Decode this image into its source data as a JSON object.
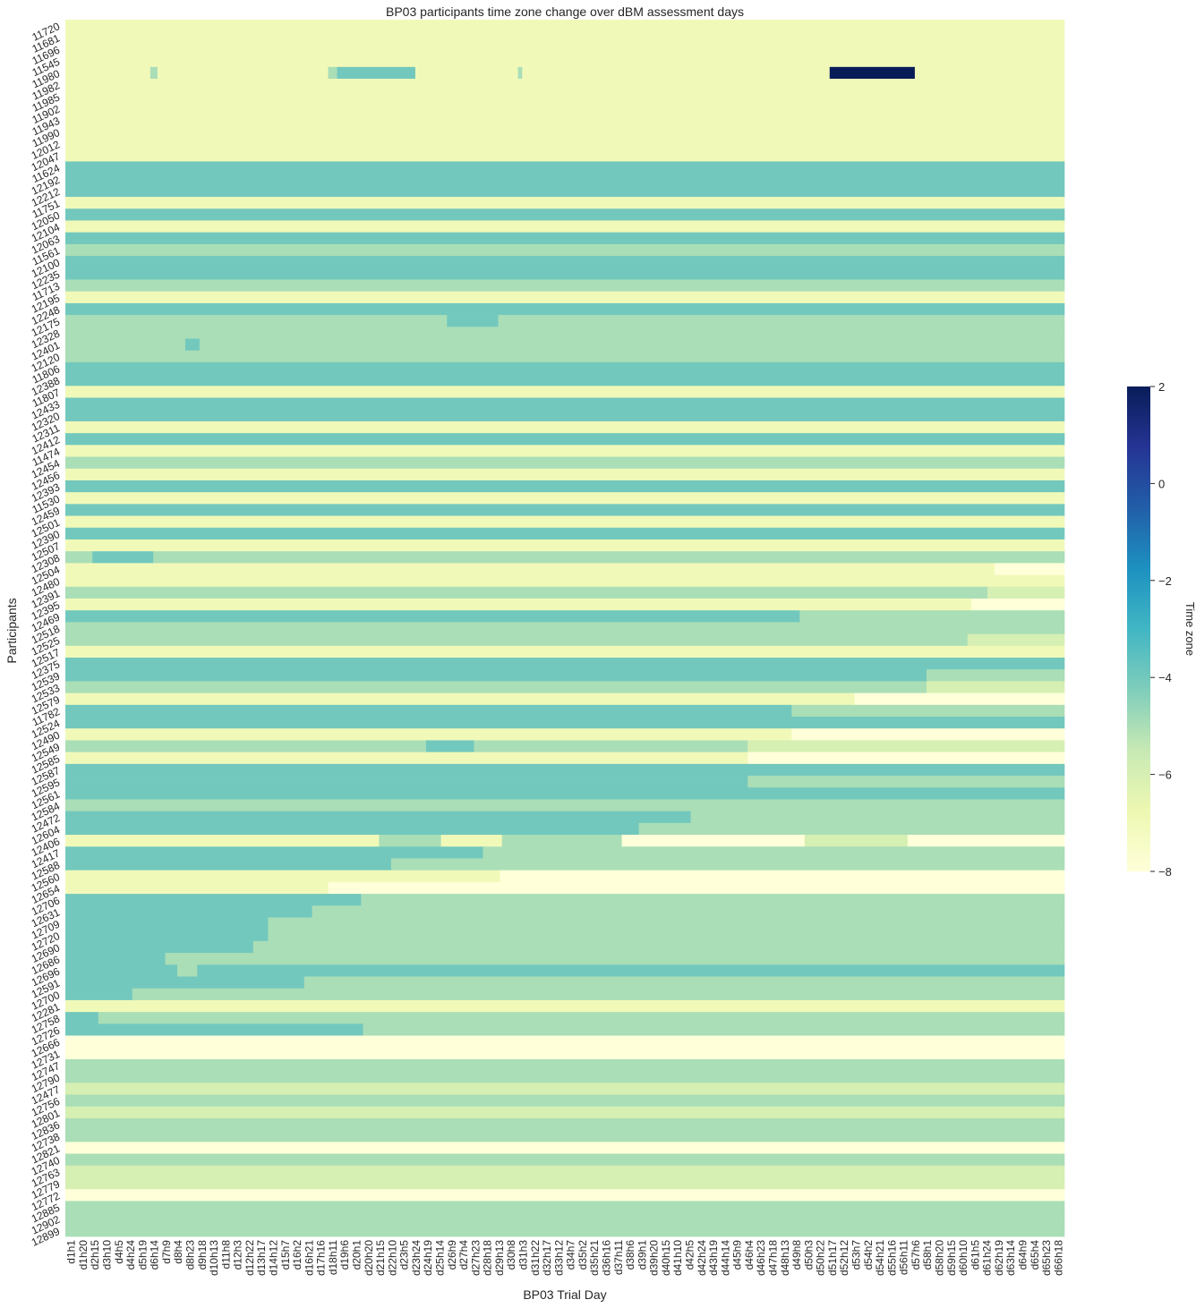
{
  "chart_data": {
    "type": "heatmap",
    "title": "BP03 participants time zone change over dBM assessment days",
    "xlabel": "BP03 Trial Day",
    "ylabel": "Participants",
    "colorbar": {
      "label": "Time zone",
      "ticks": [
        2,
        0,
        -2,
        -4,
        -6,
        -8
      ],
      "min": -8,
      "max": 2,
      "colors": [
        "#ffffd9",
        "#edf8b1",
        "#c7e9b4",
        "#7fcdbb",
        "#41b6c4",
        "#1d91c0",
        "#225ea8",
        "#253494",
        "#081d58"
      ]
    },
    "x_tick_labels": [
      "d1h1",
      "d1h20",
      "d2h15",
      "d3h10",
      "d4h5",
      "d4h24",
      "d5h19",
      "d6h14",
      "d7h9",
      "d8h4",
      "d8h23",
      "d9h18",
      "d10h13",
      "d11h8",
      "d12h3",
      "d12h22",
      "d13h17",
      "d14h12",
      "d15h7",
      "d16h2",
      "d16h21",
      "d17h16",
      "d18h11",
      "d19h6",
      "d20h1",
      "d20h20",
      "d21h15",
      "d22h10",
      "d23h5",
      "d23h24",
      "d24h19",
      "d25h14",
      "d26h9",
      "d27h4",
      "d27h23",
      "d28h18",
      "d29h13",
      "d30h8",
      "d31h3",
      "d31h22",
      "d32h17",
      "d33h12",
      "d34h7",
      "d35h2",
      "d35h21",
      "d36h16",
      "d37h11",
      "d38h6",
      "d39h1",
      "d39h20",
      "d40h15",
      "d41h10",
      "d42h5",
      "d42h24",
      "d43h19",
      "d44h14",
      "d45h9",
      "d46h4",
      "d46h23",
      "d47h18",
      "d48h13",
      "d49h8",
      "d50h3",
      "d50h22",
      "d51h17",
      "d52h12",
      "d53h7",
      "d54h2",
      "d54h21",
      "d55h16",
      "d56h11",
      "d57h6",
      "d58h1",
      "d58h20",
      "d59h15",
      "d60h10",
      "d61h5",
      "d61h24",
      "d62h19",
      "d63h14",
      "d64h9",
      "d65h4",
      "d65h23",
      "d66h18"
    ],
    "participants": [
      "11720",
      "11681",
      "11696",
      "11545",
      "11980",
      "11982",
      "11985",
      "11902",
      "11943",
      "11990",
      "12012",
      "12047",
      "11624",
      "12192",
      "12212",
      "11751",
      "12050",
      "12104",
      "12063",
      "11561",
      "12100",
      "12235",
      "11713",
      "12195",
      "12248",
      "12175",
      "12328",
      "12401",
      "12120",
      "11806",
      "12388",
      "11807",
      "12433",
      "12320",
      "12311",
      "12412",
      "11474",
      "12454",
      "12456",
      "12393",
      "11530",
      "12459",
      "12501",
      "12390",
      "12507",
      "12308",
      "12504",
      "12480",
      "12391",
      "12395",
      "12469",
      "12518",
      "12525",
      "12517",
      "12375",
      "12539",
      "12533",
      "12579",
      "11782",
      "12524",
      "12490",
      "12549",
      "12585",
      "12587",
      "12595",
      "12561",
      "12584",
      "12472",
      "12604",
      "12406",
      "12417",
      "12588",
      "12560",
      "12654",
      "12706",
      "12631",
      "12709",
      "12720",
      "12690",
      "12686",
      "12696",
      "12591",
      "12700",
      "12281",
      "12758",
      "12726",
      "12666",
      "12731",
      "12747",
      "12790",
      "12477",
      "12756",
      "12801",
      "12836",
      "12738",
      "12821",
      "12740",
      "12763",
      "12779",
      "12772",
      "12885",
      "12902",
      "12899"
    ],
    "rows": [
      [
        [
          0,
          100,
          -7
        ]
      ],
      [
        [
          0,
          100,
          -7
        ]
      ],
      [
        [
          0,
          100,
          -7
        ]
      ],
      [
        [
          0,
          100,
          -7
        ]
      ],
      [
        [
          0,
          100,
          -7
        ],
        [
          8.5,
          9.2,
          -5
        ],
        [
          26.3,
          27.2,
          -5
        ],
        [
          27.2,
          35,
          -4
        ],
        [
          45.3,
          45.7,
          -5
        ],
        [
          76.5,
          85,
          2
        ]
      ],
      [
        [
          0,
          100,
          -7
        ]
      ],
      [
        [
          0,
          100,
          -7
        ]
      ],
      [
        [
          0,
          100,
          -7
        ]
      ],
      [
        [
          0,
          100,
          -7
        ]
      ],
      [
        [
          0,
          100,
          -7
        ]
      ],
      [
        [
          0,
          100,
          -7
        ]
      ],
      [
        [
          0,
          100,
          -7
        ]
      ],
      [
        [
          0,
          100,
          -4
        ]
      ],
      [
        [
          0,
          100,
          -4
        ]
      ],
      [
        [
          0,
          100,
          -4
        ]
      ],
      [
        [
          0,
          100,
          -7
        ]
      ],
      [
        [
          0,
          100,
          -4
        ]
      ],
      [
        [
          0,
          100,
          -7
        ]
      ],
      [
        [
          0,
          100,
          -4
        ]
      ],
      [
        [
          0,
          100,
          -5
        ]
      ],
      [
        [
          0,
          100,
          -4
        ]
      ],
      [
        [
          0,
          100,
          -4
        ]
      ],
      [
        [
          0,
          100,
          -5
        ]
      ],
      [
        [
          0,
          100,
          -7
        ]
      ],
      [
        [
          0,
          100,
          -4
        ]
      ],
      [
        [
          0,
          100,
          -5
        ],
        [
          38.2,
          43.3,
          -4
        ]
      ],
      [
        [
          0,
          100,
          -5
        ]
      ],
      [
        [
          0,
          100,
          -5
        ],
        [
          12,
          13.4,
          -4
        ]
      ],
      [
        [
          0,
          100,
          -5
        ]
      ],
      [
        [
          0,
          100,
          -4
        ]
      ],
      [
        [
          0,
          100,
          -4
        ]
      ],
      [
        [
          0,
          100,
          -7
        ]
      ],
      [
        [
          0,
          100,
          -4
        ]
      ],
      [
        [
          0,
          100,
          -4
        ]
      ],
      [
        [
          0,
          100,
          -7
        ]
      ],
      [
        [
          0,
          100,
          -4
        ]
      ],
      [
        [
          0,
          100,
          -7
        ]
      ],
      [
        [
          0,
          100,
          -5
        ]
      ],
      [
        [
          0,
          100,
          -7
        ]
      ],
      [
        [
          0,
          100,
          -4
        ]
      ],
      [
        [
          0,
          100,
          -7
        ]
      ],
      [
        [
          0,
          100,
          -4
        ]
      ],
      [
        [
          0,
          100,
          -7
        ]
      ],
      [
        [
          0,
          100,
          -4
        ]
      ],
      [
        [
          0,
          100,
          -7
        ]
      ],
      [
        [
          0,
          2.7,
          -5
        ],
        [
          2.7,
          8.8,
          -4
        ],
        [
          8.8,
          100,
          -5
        ]
      ],
      [
        [
          0,
          93,
          -7
        ],
        [
          93,
          100,
          -8
        ]
      ],
      [
        [
          0,
          100,
          -7
        ]
      ],
      [
        [
          0,
          92.3,
          -5
        ],
        [
          92.3,
          100,
          -6
        ]
      ],
      [
        [
          0,
          90.7,
          -7
        ],
        [
          90.7,
          100,
          -8
        ]
      ],
      [
        [
          0,
          73.5,
          -4
        ],
        [
          73.5,
          100,
          -5
        ]
      ],
      [
        [
          0,
          100,
          -5
        ]
      ],
      [
        [
          0,
          90.3,
          -5
        ],
        [
          90.3,
          100,
          -6
        ]
      ],
      [
        [
          0,
          100,
          -7
        ]
      ],
      [
        [
          0,
          100,
          -4
        ]
      ],
      [
        [
          0,
          86.2,
          -4
        ],
        [
          86.2,
          100,
          -5
        ]
      ],
      [
        [
          0,
          86.2,
          -5
        ],
        [
          86.2,
          100,
          -6
        ]
      ],
      [
        [
          0,
          79,
          -7
        ],
        [
          79,
          100,
          -8
        ]
      ],
      [
        [
          0,
          72.7,
          -4
        ],
        [
          72.7,
          100,
          -5
        ]
      ],
      [
        [
          0,
          100,
          -4
        ]
      ],
      [
        [
          0,
          72.7,
          -7
        ],
        [
          72.7,
          100,
          -8
        ]
      ],
      [
        [
          0,
          36.1,
          -5
        ],
        [
          36.1,
          40.9,
          -4
        ],
        [
          40.9,
          68.3,
          -5
        ],
        [
          68.3,
          100,
          -6
        ]
      ],
      [
        [
          0,
          68.3,
          -7
        ],
        [
          68.3,
          100,
          -8
        ]
      ],
      [
        [
          0,
          100,
          -4
        ]
      ],
      [
        [
          0,
          68.3,
          -4
        ],
        [
          68.3,
          100,
          -5
        ]
      ],
      [
        [
          0,
          100,
          -4
        ]
      ],
      [
        [
          0,
          100,
          -5
        ]
      ],
      [
        [
          0,
          62.6,
          -4
        ],
        [
          62.6,
          100,
          -5
        ]
      ],
      [
        [
          0,
          57.4,
          -4
        ],
        [
          57.4,
          100,
          -5
        ]
      ],
      [
        [
          0,
          31.4,
          -7
        ],
        [
          31.4,
          37.6,
          -5
        ],
        [
          37.6,
          43.7,
          -7
        ],
        [
          43.7,
          55.7,
          -5
        ],
        [
          55.7,
          74,
          -8
        ],
        [
          74,
          84.3,
          -6
        ],
        [
          84.3,
          100,
          -8
        ]
      ],
      [
        [
          0,
          41.8,
          -4
        ],
        [
          41.8,
          100,
          -5
        ]
      ],
      [
        [
          0,
          32.6,
          -4
        ],
        [
          32.6,
          100,
          -5
        ]
      ],
      [
        [
          0,
          43.5,
          -7
        ],
        [
          43.5,
          100,
          -8
        ]
      ],
      [
        [
          0,
          26.3,
          -7
        ],
        [
          26.3,
          100,
          -8
        ]
      ],
      [
        [
          0,
          29.6,
          -4
        ],
        [
          29.6,
          100,
          -5
        ]
      ],
      [
        [
          0,
          24.7,
          -4
        ],
        [
          24.7,
          100,
          -5
        ]
      ],
      [
        [
          0,
          20.3,
          -4
        ],
        [
          20.3,
          100,
          -5
        ]
      ],
      [
        [
          0,
          20.3,
          -4
        ],
        [
          20.3,
          100,
          -5
        ]
      ],
      [
        [
          0,
          18.8,
          -4
        ],
        [
          18.8,
          100,
          -5
        ]
      ],
      [
        [
          0,
          10,
          -4
        ],
        [
          10,
          100,
          -5
        ]
      ],
      [
        [
          0,
          11.2,
          -4
        ],
        [
          11.2,
          13.2,
          -5
        ],
        [
          13.2,
          100,
          -4
        ]
      ],
      [
        [
          0,
          23.9,
          -4
        ],
        [
          23.9,
          100,
          -5
        ]
      ],
      [
        [
          0,
          6.7,
          -4
        ],
        [
          6.7,
          100,
          -5
        ]
      ],
      [
        [
          0,
          100,
          -7
        ]
      ],
      [
        [
          0,
          3.3,
          -4
        ],
        [
          3.3,
          100,
          -5
        ]
      ],
      [
        [
          0,
          29.8,
          -4
        ],
        [
          29.8,
          100,
          -5
        ]
      ],
      [
        [
          0,
          100,
          -8
        ]
      ],
      [
        [
          0,
          100,
          -8
        ]
      ],
      [
        [
          0,
          100,
          -5
        ]
      ],
      [
        [
          0,
          100,
          -5
        ]
      ],
      [
        [
          0,
          100,
          -6
        ]
      ],
      [
        [
          0,
          100,
          -5
        ]
      ],
      [
        [
          0,
          100,
          -6
        ]
      ],
      [
        [
          0,
          100,
          -5
        ]
      ],
      [
        [
          0,
          100,
          -5
        ]
      ],
      [
        [
          0,
          100,
          -8
        ]
      ],
      [
        [
          0,
          100,
          -5
        ]
      ],
      [
        [
          0,
          100,
          -6
        ]
      ],
      [
        [
          0,
          100,
          -6
        ]
      ],
      [
        [
          0,
          100,
          -8
        ]
      ],
      [
        [
          0,
          100,
          -5
        ]
      ],
      [
        [
          0,
          100,
          -5
        ]
      ],
      [
        [
          0,
          100,
          -5
        ]
      ]
    ]
  }
}
